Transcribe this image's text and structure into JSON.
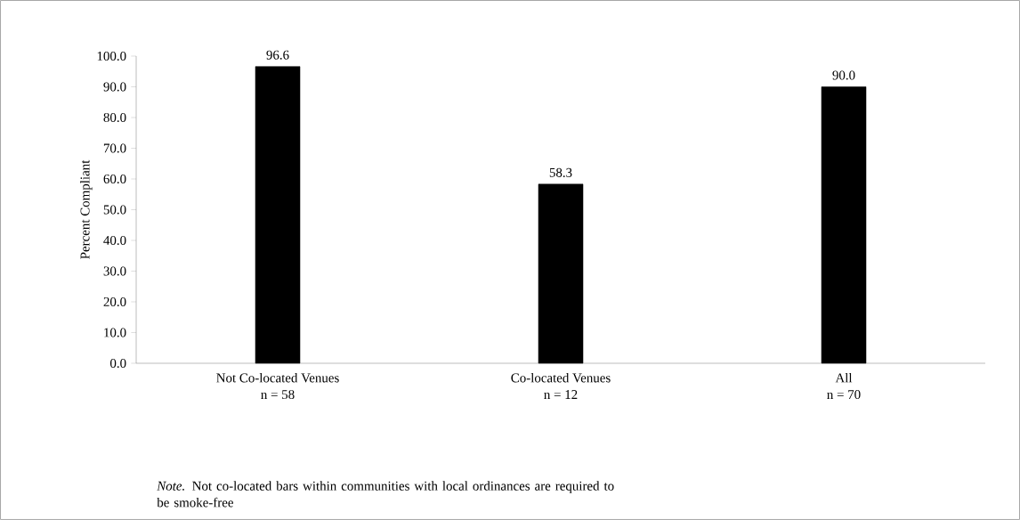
{
  "chart_data": {
    "type": "bar",
    "ylabel": "Percent Compliant",
    "categories": [
      "Not Co-located Venues\nn = 58",
      "Co-located Venues\nn = 12",
      "All\nn = 70"
    ],
    "values": [
      96.6,
      58.3,
      90.0
    ],
    "value_labels": [
      "96.6",
      "58.3",
      "90.0"
    ],
    "color": "#000000",
    "ylim": [
      0,
      100
    ],
    "yticks": [
      {
        "value": 0,
        "label": "0.0"
      },
      {
        "value": 10,
        "label": "10.0"
      },
      {
        "value": 20,
        "label": "20.0"
      },
      {
        "value": 30,
        "label": "30.0"
      },
      {
        "value": 40,
        "label": "40.0"
      },
      {
        "value": 50,
        "label": "50.0"
      },
      {
        "value": 60,
        "label": "60.0"
      },
      {
        "value": 70,
        "label": "70.0"
      },
      {
        "value": 80,
        "label": "80.0"
      },
      {
        "value": 90,
        "label": "90.0"
      },
      {
        "value": 100,
        "label": "100.0"
      }
    ],
    "annotations": [
      "*Note.* Not co-located bars within communities with local ordinances are required to be smoke-free"
    ],
    "grid": false
  }
}
